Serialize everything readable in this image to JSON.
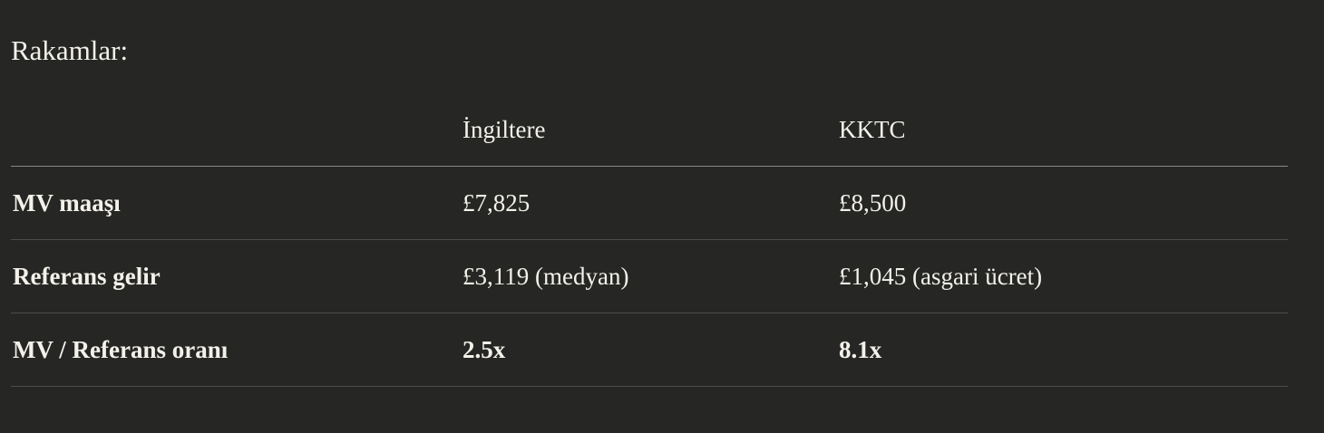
{
  "title": "Rakamlar:",
  "table": {
    "headers": [
      "",
      "İngiltere",
      "KKTC"
    ],
    "rows": [
      {
        "label": "MV maaşı",
        "values": [
          "£7,825",
          "£8,500"
        ],
        "bold": false
      },
      {
        "label": "Referans gelir",
        "values": [
          "£3,119 (medyan)",
          "£1,045 (asgari ücret)"
        ],
        "bold": false
      },
      {
        "label": "MV / Referans oranı",
        "values": [
          "2.5x",
          "8.1x"
        ],
        "bold": true
      }
    ]
  }
}
